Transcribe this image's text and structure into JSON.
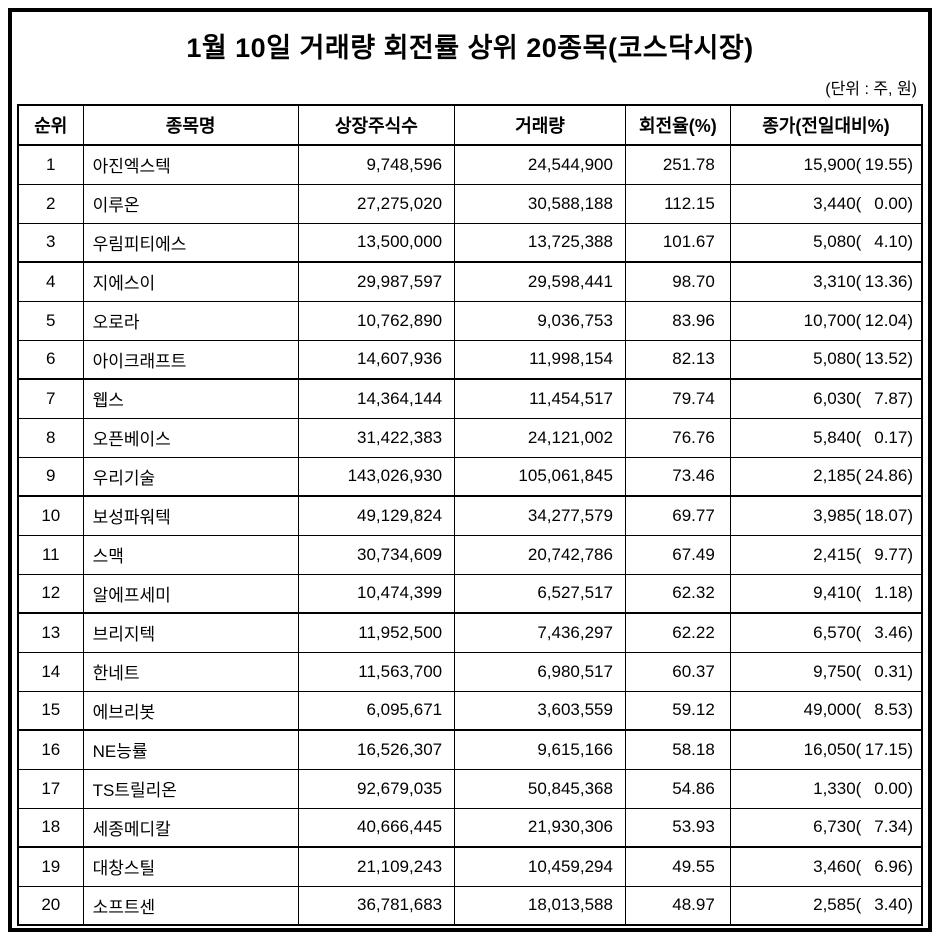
{
  "colors": {
    "border": "#000000",
    "background": "#ffffff",
    "text": "#000000"
  },
  "chart_data": {
    "type": "table",
    "title": "1월 10일 거래량 회전률 상위 20종목(코스닥시장)",
    "unit_note": "(단위 : 주, 원)",
    "columns": [
      "순위",
      "종목명",
      "상장주식수",
      "거래량",
      "회전율(%)",
      "종가(전일대비%)"
    ],
    "rows": [
      {
        "rank": "1",
        "name": "아진엑스텍",
        "listed_shares": "9,748,596",
        "volume": "24,544,900",
        "turnover_pct": "251.78",
        "close_price": "15,900",
        "change_pct": "19.55"
      },
      {
        "rank": "2",
        "name": "이루온",
        "listed_shares": "27,275,020",
        "volume": "30,588,188",
        "turnover_pct": "112.15",
        "close_price": "3,440",
        "change_pct": "0.00"
      },
      {
        "rank": "3",
        "name": "우림피티에스",
        "listed_shares": "13,500,000",
        "volume": "13,725,388",
        "turnover_pct": "101.67",
        "close_price": "5,080",
        "change_pct": "4.10"
      },
      {
        "rank": "4",
        "name": "지에스이",
        "listed_shares": "29,987,597",
        "volume": "29,598,441",
        "turnover_pct": "98.70",
        "close_price": "3,310",
        "change_pct": "13.36"
      },
      {
        "rank": "5",
        "name": "오로라",
        "listed_shares": "10,762,890",
        "volume": "9,036,753",
        "turnover_pct": "83.96",
        "close_price": "10,700",
        "change_pct": "12.04"
      },
      {
        "rank": "6",
        "name": "아이크래프트",
        "listed_shares": "14,607,936",
        "volume": "11,998,154",
        "turnover_pct": "82.13",
        "close_price": "5,080",
        "change_pct": "13.52"
      },
      {
        "rank": "7",
        "name": "웹스",
        "listed_shares": "14,364,144",
        "volume": "11,454,517",
        "turnover_pct": "79.74",
        "close_price": "6,030",
        "change_pct": "7.87"
      },
      {
        "rank": "8",
        "name": "오픈베이스",
        "listed_shares": "31,422,383",
        "volume": "24,121,002",
        "turnover_pct": "76.76",
        "close_price": "5,840",
        "change_pct": "0.17"
      },
      {
        "rank": "9",
        "name": "우리기술",
        "listed_shares": "143,026,930",
        "volume": "105,061,845",
        "turnover_pct": "73.46",
        "close_price": "2,185",
        "change_pct": "24.86"
      },
      {
        "rank": "10",
        "name": "보성파워텍",
        "listed_shares": "49,129,824",
        "volume": "34,277,579",
        "turnover_pct": "69.77",
        "close_price": "3,985",
        "change_pct": "18.07"
      },
      {
        "rank": "11",
        "name": "스맥",
        "listed_shares": "30,734,609",
        "volume": "20,742,786",
        "turnover_pct": "67.49",
        "close_price": "2,415",
        "change_pct": "9.77"
      },
      {
        "rank": "12",
        "name": "알에프세미",
        "listed_shares": "10,474,399",
        "volume": "6,527,517",
        "turnover_pct": "62.32",
        "close_price": "9,410",
        "change_pct": "1.18"
      },
      {
        "rank": "13",
        "name": "브리지텍",
        "listed_shares": "11,952,500",
        "volume": "7,436,297",
        "turnover_pct": "62.22",
        "close_price": "6,570",
        "change_pct": "3.46"
      },
      {
        "rank": "14",
        "name": "한네트",
        "listed_shares": "11,563,700",
        "volume": "6,980,517",
        "turnover_pct": "60.37",
        "close_price": "9,750",
        "change_pct": "0.31"
      },
      {
        "rank": "15",
        "name": "에브리봇",
        "listed_shares": "6,095,671",
        "volume": "3,603,559",
        "turnover_pct": "59.12",
        "close_price": "49,000",
        "change_pct": "8.53"
      },
      {
        "rank": "16",
        "name": "NE능률",
        "listed_shares": "16,526,307",
        "volume": "9,615,166",
        "turnover_pct": "58.18",
        "close_price": "16,050",
        "change_pct": "17.15"
      },
      {
        "rank": "17",
        "name": "TS트릴리온",
        "listed_shares": "92,679,035",
        "volume": "50,845,368",
        "turnover_pct": "54.86",
        "close_price": "1,330",
        "change_pct": "0.00"
      },
      {
        "rank": "18",
        "name": "세종메디칼",
        "listed_shares": "40,666,445",
        "volume": "21,930,306",
        "turnover_pct": "53.93",
        "close_price": "6,730",
        "change_pct": "7.34"
      },
      {
        "rank": "19",
        "name": "대창스틸",
        "listed_shares": "21,109,243",
        "volume": "10,459,294",
        "turnover_pct": "49.55",
        "close_price": "3,460",
        "change_pct": "6.96"
      },
      {
        "rank": "20",
        "name": "소프트센",
        "listed_shares": "36,781,683",
        "volume": "18,013,588",
        "turnover_pct": "48.97",
        "close_price": "2,585",
        "change_pct": "3.40"
      }
    ]
  }
}
